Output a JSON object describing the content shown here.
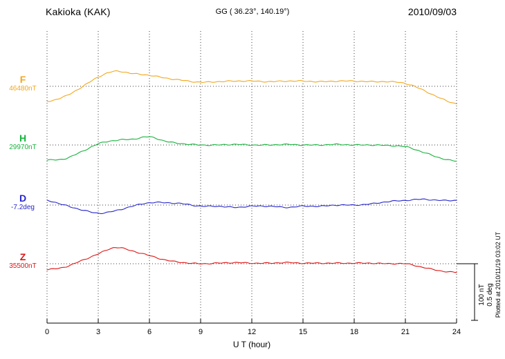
{
  "header": {
    "station": "Kakioka (KAK)",
    "coords": "GG ( 36.23°, 140.19°)",
    "date": "2010/09/03"
  },
  "axis": {
    "xlabel": "U T (hour)",
    "ticks": [
      "0",
      "3",
      "6",
      "9",
      "12",
      "15",
      "18",
      "21",
      "24"
    ]
  },
  "scalebar": {
    "line1": "100 nT",
    "line2": "0.5 deg"
  },
  "footer": {
    "plotted": "Plotted at 2010/11/19 03:02 UT"
  },
  "chart_data": {
    "type": "line",
    "title": "Kakioka (KAK) magnetogram 2010/09/03",
    "xlabel": "U T (hour)",
    "xlim": [
      0,
      24
    ],
    "x_hours": [
      0,
      1,
      2,
      3,
      4,
      5,
      6,
      7,
      8,
      9,
      10,
      11,
      12,
      13,
      14,
      15,
      16,
      17,
      18,
      19,
      20,
      21,
      22,
      23,
      24
    ],
    "grid": "vertical-dotted-every-3h",
    "scale_reference": {
      "nT": 100,
      "deg": 0.5
    },
    "series": [
      {
        "name": "F",
        "unit": "nT",
        "baseline": 46480,
        "baseline_label": "46480nT",
        "color": "#f2a71b",
        "values": [
          46454,
          46462,
          46478,
          46496,
          46506,
          46502,
          46499,
          46494,
          46490,
          46487,
          46488,
          46489,
          46489,
          46488,
          46489,
          46489,
          46488,
          46489,
          46489,
          46488,
          46488,
          46485,
          46474,
          46460,
          46450
        ]
      },
      {
        "name": "H",
        "unit": "nT",
        "baseline": 29970,
        "baseline_label": "29970nT",
        "color": "#17b33c",
        "values": [
          29944,
          29946,
          29958,
          29972,
          29978,
          29980,
          29984,
          29976,
          29972,
          29970,
          29970,
          29971,
          29970,
          29970,
          29971,
          29970,
          29970,
          29971,
          29970,
          29970,
          29969,
          29967,
          29958,
          29948,
          29942
        ]
      },
      {
        "name": "D",
        "unit": "deg",
        "baseline": -7.2,
        "baseline_label": "-7.2deg",
        "color": "#2525cc",
        "values": [
          -7.16,
          -7.2,
          -7.24,
          -7.27,
          -7.25,
          -7.21,
          -7.18,
          -7.18,
          -7.19,
          -7.21,
          -7.21,
          -7.22,
          -7.21,
          -7.21,
          -7.22,
          -7.21,
          -7.21,
          -7.2,
          -7.2,
          -7.19,
          -7.17,
          -7.16,
          -7.15,
          -7.16,
          -7.16
        ]
      },
      {
        "name": "Z",
        "unit": "nT",
        "baseline": 35500,
        "baseline_label": "35500nT",
        "color": "#dd1414",
        "values": [
          35490,
          35494,
          35505,
          35517,
          35528,
          35522,
          35514,
          35506,
          35502,
          35500,
          35501,
          35502,
          35501,
          35501,
          35502,
          35501,
          35501,
          35501,
          35501,
          35501,
          35500,
          35500,
          35494,
          35488,
          35485
        ]
      }
    ]
  }
}
